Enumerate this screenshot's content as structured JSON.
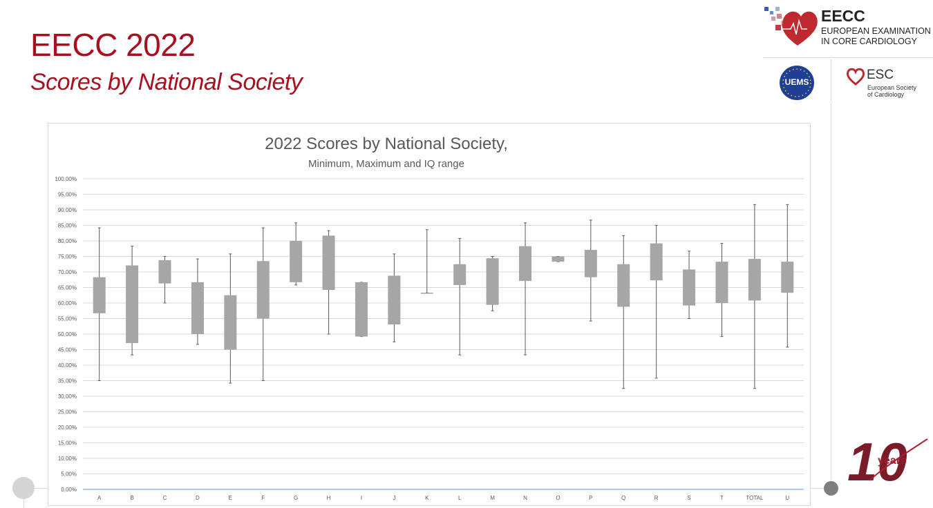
{
  "slide": {
    "title": "EECC 2022",
    "subtitle": "Scores by National Society"
  },
  "logos": {
    "eecc": {
      "name": "EECC",
      "line1": "EUROPEAN EXAMINATION",
      "line2": "IN CORE CARDIOLOGY"
    },
    "uems": {
      "name": "UEMS"
    },
    "esc": {
      "name": "ESC",
      "line1": "European Society",
      "line2": "of Cardiology"
    },
    "anniversary": {
      "number": "10",
      "word": "years"
    }
  },
  "colors": {
    "brand_red": "#a8101f",
    "box_fill": "#a6a6a6",
    "whisker": "#595959",
    "gridline": "#d9d9d9",
    "axis": "#5b9bd5"
  },
  "chart_data": {
    "type": "box",
    "title": "2022 Scores by National Society,",
    "subtitle": "Minimum, Maximum and IQ range",
    "xlabel": "",
    "ylabel": "",
    "ylim": [
      0,
      100
    ],
    "y_ticks": [
      "0,00%",
      "5,00%",
      "10,00%",
      "15,00%",
      "20,00%",
      "25,00%",
      "30,00%",
      "35,00%",
      "40,00%",
      "45,00%",
      "50,00%",
      "55,00%",
      "60,00%",
      "65,00%",
      "70,00%",
      "75,00%",
      "80,00%",
      "85,00%",
      "90,00%",
      "95,00%",
      "100,00%"
    ],
    "grid": true,
    "categories": [
      "A",
      "B",
      "C",
      "D",
      "E",
      "F",
      "G",
      "H",
      "I",
      "J",
      "K",
      "L",
      "M",
      "N",
      "O",
      "P",
      "Q",
      "R",
      "S",
      "T",
      "TOTAL",
      "U"
    ],
    "min": [
      35,
      43.3,
      60,
      46.7,
      34.2,
      35,
      65.8,
      50,
      49.2,
      47.5,
      63.3,
      43.3,
      57.5,
      43.3,
      73.3,
      54.2,
      32.5,
      35.8,
      55,
      49.2,
      32.5,
      45.8
    ],
    "q1": [
      56.7,
      47.1,
      66.3,
      50,
      45,
      55,
      66.7,
      64.2,
      49.2,
      53.1,
      63.3,
      65.8,
      59.4,
      67.1,
      73.3,
      68.3,
      58.8,
      67.3,
      59.2,
      60,
      60.8,
      63.3
    ],
    "q3": [
      68.3,
      72.1,
      73.8,
      66.7,
      62.5,
      73.5,
      80,
      81.7,
      66.7,
      68.8,
      63.3,
      72.5,
      74.4,
      78.3,
      75,
      77.1,
      72.5,
      79.2,
      70.8,
      73.3,
      74.2,
      73.3
    ],
    "max": [
      84.2,
      78.3,
      75,
      74.2,
      75.8,
      84.2,
      85.8,
      83.3,
      66.7,
      75.8,
      83.6,
      80.8,
      75,
      85.8,
      75,
      86.7,
      81.7,
      85,
      76.7,
      79.2,
      91.7,
      91.7
    ]
  }
}
